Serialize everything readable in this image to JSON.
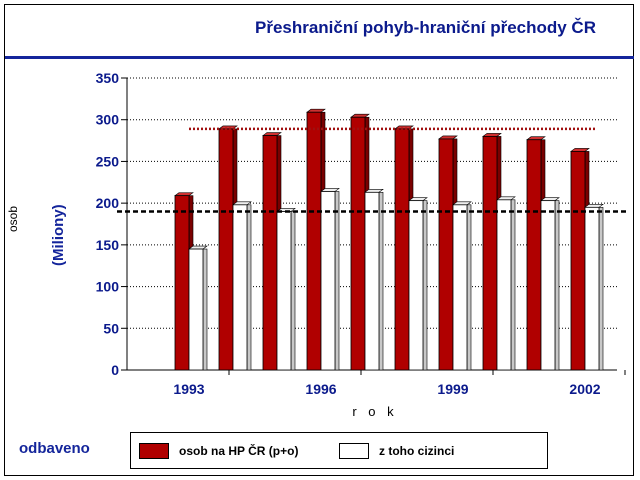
{
  "title": "Přeshraniční pohyb-hraniční přechody ČR",
  "ylabel_small": "osob",
  "ylabel_big": "(Miliony)",
  "xlabel": "r o k",
  "footer_label": "odbaveno",
  "legend": [
    {
      "label": "osob na HP ČR (p+o)",
      "color": "#b00000"
    },
    {
      "label": "z toho cizinci",
      "color": "#ffffff"
    }
  ],
  "chart_data": {
    "type": "bar",
    "title": "Přeshraniční pohyb-hraniční přechody ČR",
    "xlabel": "r o k",
    "ylabel": "osob (Miliony)",
    "ylim": [
      0,
      350
    ],
    "yticks": [
      0,
      50,
      100,
      150,
      200,
      250,
      300,
      350
    ],
    "grid": true,
    "x": [
      1993,
      1994,
      1995,
      1996,
      1997,
      1998,
      1999,
      2000,
      2001,
      2002
    ],
    "x_tick_labels": [
      "1993",
      "1996",
      "1999",
      "2002"
    ],
    "series": [
      {
        "name": "osob na HP ČR (p+o)",
        "color": "#b00000",
        "values": [
          209,
          289,
          281,
          309,
          303,
          289,
          277,
          280,
          276,
          262
        ]
      },
      {
        "name": "z toho cizinci",
        "color": "#ffffff",
        "values": [
          145,
          198,
          190,
          214,
          213,
          203,
          198,
          204,
          203,
          195
        ]
      }
    ],
    "reference_lines": [
      {
        "value": 289,
        "color": "#a01010",
        "style": "dotted"
      },
      {
        "value": 190,
        "color": "#000000",
        "style": "dashed"
      }
    ]
  }
}
